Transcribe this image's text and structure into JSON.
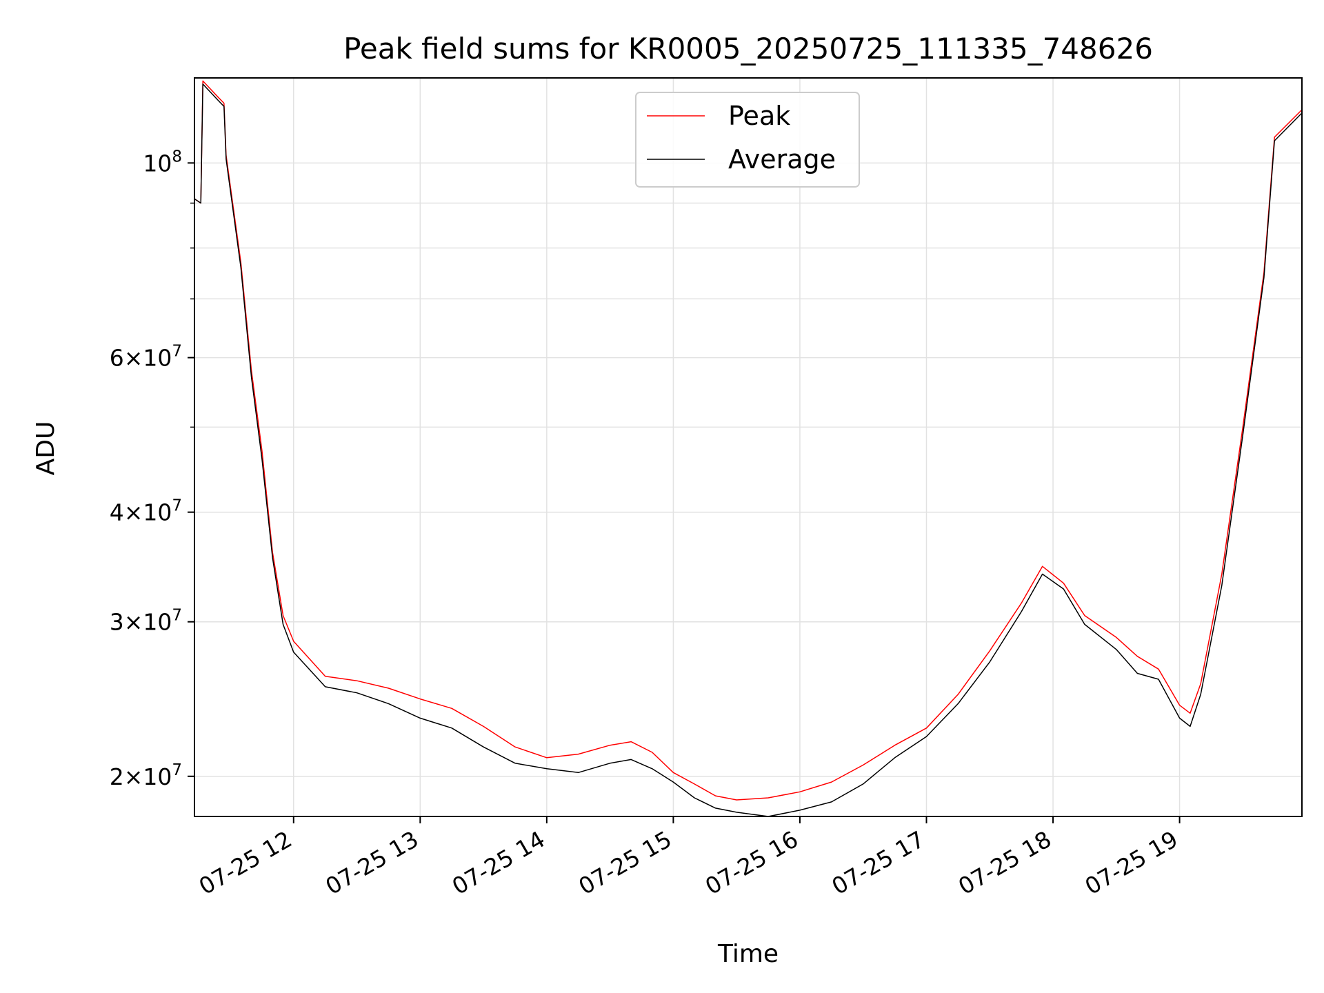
{
  "chart_data": {
    "type": "line",
    "title": "Peak field sums for KR0005_20250725_111335_748626",
    "xlabel": "Time",
    "ylabel": "ADU",
    "yscale": "log",
    "grid": true,
    "legend_position": "upper center",
    "xlim": [
      "07-25 11:13",
      "07-25 19:58"
    ],
    "ylim": [
      18000000,
      125000000
    ],
    "x_ticks": [
      "07-25 12",
      "07-25 13",
      "07-25 14",
      "07-25 15",
      "07-25 16",
      "07-25 17",
      "07-25 18",
      "07-25 19"
    ],
    "y_ticks": [
      {
        "value": 20000000,
        "base": "2",
        "exp": "7"
      },
      {
        "value": 30000000,
        "base": "3",
        "exp": "7"
      },
      {
        "value": 40000000,
        "base": "4",
        "exp": "7"
      },
      {
        "value": 60000000,
        "base": "6",
        "exp": "7"
      },
      {
        "value": 100000000,
        "base": "",
        "exp": "8"
      }
    ],
    "series": [
      {
        "name": "Peak",
        "color": "#ff0000",
        "points": [
          [
            "07-25 11:13",
            91000000
          ],
          [
            "07-25 11:16",
            90000000
          ],
          [
            "07-25 11:17",
            124000000
          ],
          [
            "07-25 11:24",
            119000000
          ],
          [
            "07-25 11:27",
            117000000
          ],
          [
            "07-25 11:28",
            102000000
          ],
          [
            "07-25 11:35",
            77000000
          ],
          [
            "07-25 11:40",
            58000000
          ],
          [
            "07-25 11:45",
            47000000
          ],
          [
            "07-25 11:50",
            36000000
          ],
          [
            "07-25 11:55",
            30500000
          ],
          [
            "07-25 12:00",
            28500000
          ],
          [
            "07-25 12:15",
            26000000
          ],
          [
            "07-25 12:30",
            25700000
          ],
          [
            "07-25 12:45",
            25200000
          ],
          [
            "07-25 13:00",
            24500000
          ],
          [
            "07-25 13:15",
            23900000
          ],
          [
            "07-25 13:30",
            22800000
          ],
          [
            "07-25 13:45",
            21600000
          ],
          [
            "07-25 14:00",
            21000000
          ],
          [
            "07-25 14:15",
            21200000
          ],
          [
            "07-25 14:30",
            21700000
          ],
          [
            "07-25 14:40",
            21900000
          ],
          [
            "07-25 14:50",
            21300000
          ],
          [
            "07-25 15:00",
            20200000
          ],
          [
            "07-25 15:10",
            19600000
          ],
          [
            "07-25 15:20",
            19000000
          ],
          [
            "07-25 15:30",
            18800000
          ],
          [
            "07-25 15:45",
            18900000
          ],
          [
            "07-25 16:00",
            19200000
          ],
          [
            "07-25 16:15",
            19700000
          ],
          [
            "07-25 16:30",
            20600000
          ],
          [
            "07-25 16:45",
            21700000
          ],
          [
            "07-25 17:00",
            22700000
          ],
          [
            "07-25 17:15",
            24800000
          ],
          [
            "07-25 17:30",
            27800000
          ],
          [
            "07-25 17:45",
            31500000
          ],
          [
            "07-25 17:55",
            34700000
          ],
          [
            "07-25 18:05",
            33200000
          ],
          [
            "07-25 18:15",
            30500000
          ],
          [
            "07-25 18:30",
            28800000
          ],
          [
            "07-25 18:40",
            27400000
          ],
          [
            "07-25 18:50",
            26500000
          ],
          [
            "07-25 19:00",
            24100000
          ],
          [
            "07-25 19:05",
            23600000
          ],
          [
            "07-25 19:10",
            25500000
          ],
          [
            "07-25 19:20",
            34000000
          ],
          [
            "07-25 19:30",
            50000000
          ],
          [
            "07-25 19:40",
            75000000
          ],
          [
            "07-25 19:45",
            107000000
          ],
          [
            "07-25 19:58",
            115000000
          ]
        ]
      },
      {
        "name": "Average",
        "color": "#000000",
        "points": [
          [
            "07-25 11:13",
            91000000
          ],
          [
            "07-25 11:16",
            90000000
          ],
          [
            "07-25 11:17",
            123000000
          ],
          [
            "07-25 11:24",
            118000000
          ],
          [
            "07-25 11:27",
            116000000
          ],
          [
            "07-25 11:28",
            101000000
          ],
          [
            "07-25 11:35",
            76000000
          ],
          [
            "07-25 11:40",
            57000000
          ],
          [
            "07-25 11:45",
            46000000
          ],
          [
            "07-25 11:50",
            35500000
          ],
          [
            "07-25 11:55",
            29800000
          ],
          [
            "07-25 12:00",
            27700000
          ],
          [
            "07-25 12:15",
            25300000
          ],
          [
            "07-25 12:30",
            24900000
          ],
          [
            "07-25 12:45",
            24200000
          ],
          [
            "07-25 13:00",
            23300000
          ],
          [
            "07-25 13:15",
            22700000
          ],
          [
            "07-25 13:30",
            21600000
          ],
          [
            "07-25 13:45",
            20700000
          ],
          [
            "07-25 14:00",
            20400000
          ],
          [
            "07-25 14:15",
            20200000
          ],
          [
            "07-25 14:30",
            20700000
          ],
          [
            "07-25 14:40",
            20900000
          ],
          [
            "07-25 14:50",
            20400000
          ],
          [
            "07-25 15:00",
            19700000
          ],
          [
            "07-25 15:10",
            18900000
          ],
          [
            "07-25 15:20",
            18400000
          ],
          [
            "07-25 15:30",
            18200000
          ],
          [
            "07-25 15:45",
            18000000
          ],
          [
            "07-25 16:00",
            18300000
          ],
          [
            "07-25 16:15",
            18700000
          ],
          [
            "07-25 16:30",
            19600000
          ],
          [
            "07-25 16:45",
            21000000
          ],
          [
            "07-25 17:00",
            22200000
          ],
          [
            "07-25 17:15",
            24200000
          ],
          [
            "07-25 17:30",
            27000000
          ],
          [
            "07-25 17:45",
            30800000
          ],
          [
            "07-25 17:55",
            34000000
          ],
          [
            "07-25 18:05",
            32700000
          ],
          [
            "07-25 18:15",
            29800000
          ],
          [
            "07-25 18:30",
            27900000
          ],
          [
            "07-25 18:40",
            26200000
          ],
          [
            "07-25 18:50",
            25800000
          ],
          [
            "07-25 19:00",
            23300000
          ],
          [
            "07-25 19:05",
            22800000
          ],
          [
            "07-25 19:10",
            24800000
          ],
          [
            "07-25 19:20",
            33000000
          ],
          [
            "07-25 19:30",
            49000000
          ],
          [
            "07-25 19:40",
            74000000
          ],
          [
            "07-25 19:45",
            106000000
          ],
          [
            "07-25 19:58",
            114000000
          ]
        ]
      }
    ]
  }
}
